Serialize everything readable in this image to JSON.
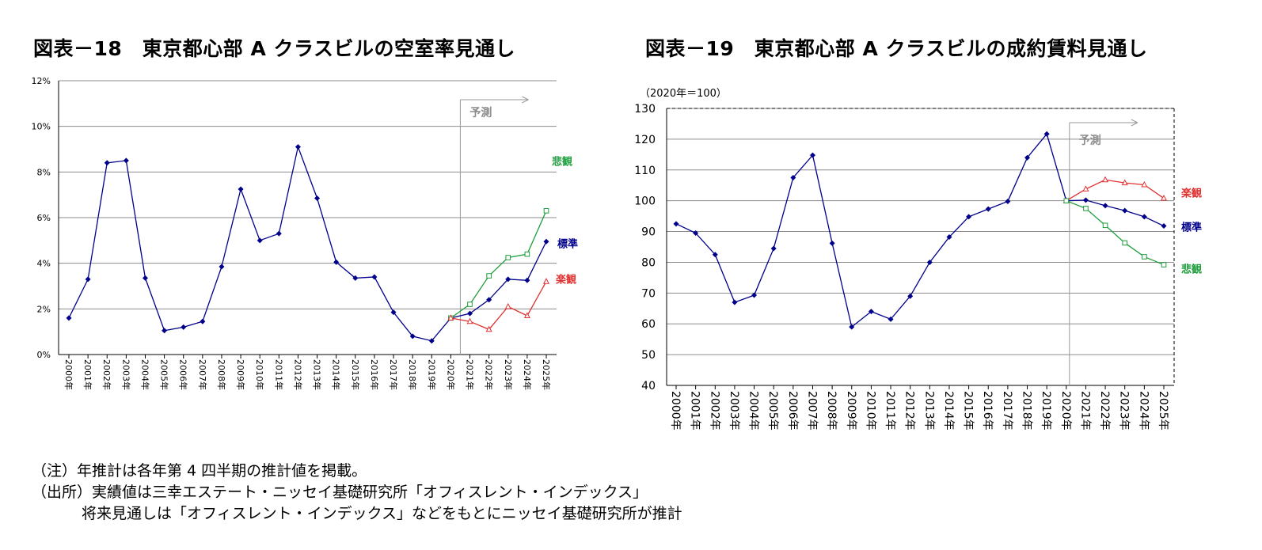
{
  "chart_data": [
    {
      "type": "line",
      "title": "図表－18　東京都心部 A クラスビルの空室率見通し",
      "categories": [
        "2000年",
        "2001年",
        "2002年",
        "2003年",
        "2004年",
        "2005年",
        "2006年",
        "2007年",
        "2008年",
        "2009年",
        "2010年",
        "2011年",
        "2012年",
        "2013年",
        "2014年",
        "2015年",
        "2016年",
        "2017年",
        "2018年",
        "2019年",
        "2020年",
        "2021年",
        "2022年",
        "2023年",
        "2024年",
        "2025年"
      ],
      "yticks": [
        "0%",
        "2%",
        "4%",
        "6%",
        "8%",
        "10%",
        "12%"
      ],
      "ylim": [
        0,
        12
      ],
      "grid": true,
      "forecast_label": "予測",
      "forecast_start": "2020年",
      "series": [
        {
          "name": "標準",
          "color": "#00008b",
          "marker": "diamond",
          "values": [
            1.6,
            3.3,
            8.4,
            8.5,
            3.35,
            1.05,
            1.2,
            1.45,
            3.85,
            7.25,
            5.0,
            5.3,
            9.1,
            6.85,
            4.05,
            3.35,
            3.4,
            1.85,
            0.8,
            0.6,
            1.6,
            1.8,
            2.4,
            3.3,
            3.25,
            4.95
          ]
        },
        {
          "name": "悲観",
          "color": "#1e9e3c",
          "marker": "square",
          "values": [
            null,
            null,
            null,
            null,
            null,
            null,
            null,
            null,
            null,
            null,
            null,
            null,
            null,
            null,
            null,
            null,
            null,
            null,
            null,
            null,
            1.6,
            2.2,
            3.45,
            4.25,
            4.4,
            6.3
          ]
        },
        {
          "name": "楽観",
          "color": "#e03030",
          "marker": "triangle",
          "values": [
            null,
            null,
            null,
            null,
            null,
            null,
            null,
            null,
            null,
            null,
            null,
            null,
            null,
            null,
            null,
            null,
            null,
            null,
            null,
            null,
            1.6,
            1.45,
            1.1,
            2.1,
            1.7,
            3.2
          ]
        }
      ]
    },
    {
      "type": "line",
      "title": "図表－19　東京都心部 A クラスビルの成約賃料見通し",
      "unit_note": "（2020年＝100）",
      "categories": [
        "2000年",
        "2001年",
        "2002年",
        "2003年",
        "2004年",
        "2005年",
        "2006年",
        "2007年",
        "2008年",
        "2009年",
        "2010年",
        "2011年",
        "2012年",
        "2013年",
        "2014年",
        "2015年",
        "2016年",
        "2017年",
        "2018年",
        "2019年",
        "2020年",
        "2021年",
        "2022年",
        "2023年",
        "2024年",
        "2025年"
      ],
      "yticks": [
        "40",
        "50",
        "60",
        "70",
        "80",
        "90",
        "100",
        "110",
        "120",
        "130"
      ],
      "ylim": [
        40,
        130
      ],
      "grid": true,
      "forecast_label": "予測",
      "forecast_start": "2020年",
      "series": [
        {
          "name": "標準",
          "color": "#00008b",
          "marker": "diamond",
          "values": [
            92.5,
            89.5,
            82.5,
            67.0,
            69.3,
            84.5,
            107.5,
            114.8,
            86.2,
            59.0,
            64.0,
            61.5,
            69.0,
            80.0,
            88.2,
            94.8,
            97.3,
            99.8,
            114.0,
            121.7,
            100.0,
            100.2,
            98.4,
            96.8,
            94.8,
            91.8
          ]
        },
        {
          "name": "楽観",
          "color": "#e03030",
          "marker": "triangle",
          "values": [
            null,
            null,
            null,
            null,
            null,
            null,
            null,
            null,
            null,
            null,
            null,
            null,
            null,
            null,
            null,
            null,
            null,
            null,
            null,
            null,
            100.0,
            103.8,
            106.8,
            105.8,
            105.2,
            100.8
          ]
        },
        {
          "name": "悲観",
          "color": "#1e9e3c",
          "marker": "square",
          "values": [
            null,
            null,
            null,
            null,
            null,
            null,
            null,
            null,
            null,
            null,
            null,
            null,
            null,
            null,
            null,
            null,
            null,
            null,
            null,
            null,
            100.0,
            97.5,
            92.0,
            86.3,
            81.8,
            79.2
          ]
        }
      ]
    }
  ],
  "notes": [
    "（注）年推計は各年第 4 四半期の推計値を掲載。",
    "（出所）実績値は三幸エステート・ニッセイ基礎研究所「オフィスレント・インデックス」",
    "将来見通しは「オフィスレント・インデックス」などをもとにニッセイ基礎研究所が推計"
  ]
}
